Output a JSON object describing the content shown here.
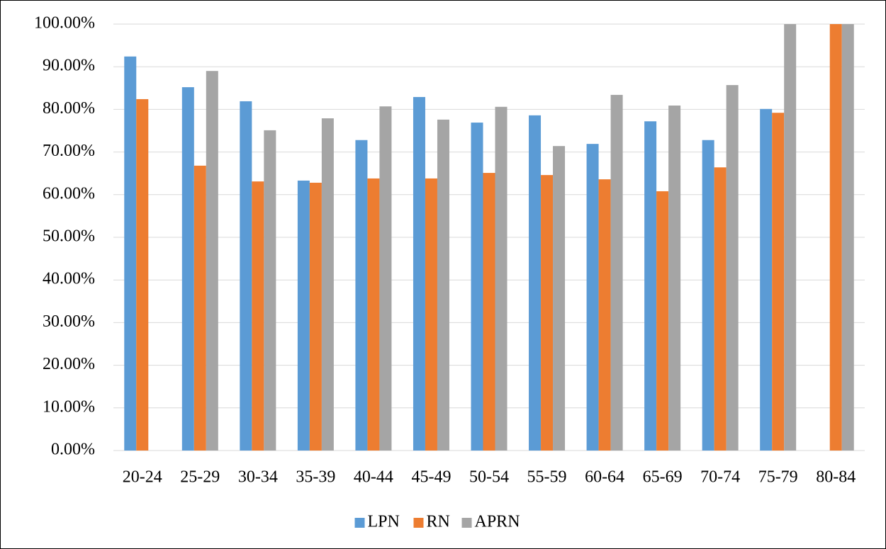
{
  "chart_data": {
    "type": "bar",
    "categories": [
      "20-24",
      "25-29",
      "30-34",
      "35-39",
      "40-44",
      "45-49",
      "50-54",
      "55-59",
      "60-64",
      "65-69",
      "70-74",
      "75-79",
      "80-84"
    ],
    "series": [
      {
        "name": "LPN",
        "color": "#5b9bd5",
        "values": [
          92.4,
          85.2,
          81.9,
          63.3,
          72.8,
          82.9,
          76.9,
          78.6,
          71.9,
          77.2,
          72.8,
          80.1,
          null
        ]
      },
      {
        "name": "RN",
        "color": "#ed7d31",
        "values": [
          82.4,
          66.8,
          63.1,
          62.8,
          63.8,
          63.8,
          65.1,
          64.6,
          63.6,
          60.8,
          66.4,
          79.2,
          100
        ]
      },
      {
        "name": "APRN",
        "color": "#a5a5a5",
        "values": [
          null,
          89.0,
          75.1,
          77.9,
          80.7,
          77.6,
          80.6,
          71.4,
          83.4,
          80.9,
          85.7,
          100,
          100
        ]
      }
    ],
    "ylim": [
      0,
      100
    ],
    "yticks": [
      {
        "value": 0,
        "label": "0.00%"
      },
      {
        "value": 10,
        "label": "10.00%"
      },
      {
        "value": 20,
        "label": "20.00%"
      },
      {
        "value": 30,
        "label": "30.00%"
      },
      {
        "value": 40,
        "label": "40.00%"
      },
      {
        "value": 50,
        "label": "50.00%"
      },
      {
        "value": 60,
        "label": "60.00%"
      },
      {
        "value": 70,
        "label": "70.00%"
      },
      {
        "value": 80,
        "label": "80.00%"
      },
      {
        "value": 90,
        "label": "90.00%"
      },
      {
        "value": 100,
        "label": "100.00%"
      }
    ],
    "grid": true,
    "legend": "bottom"
  }
}
